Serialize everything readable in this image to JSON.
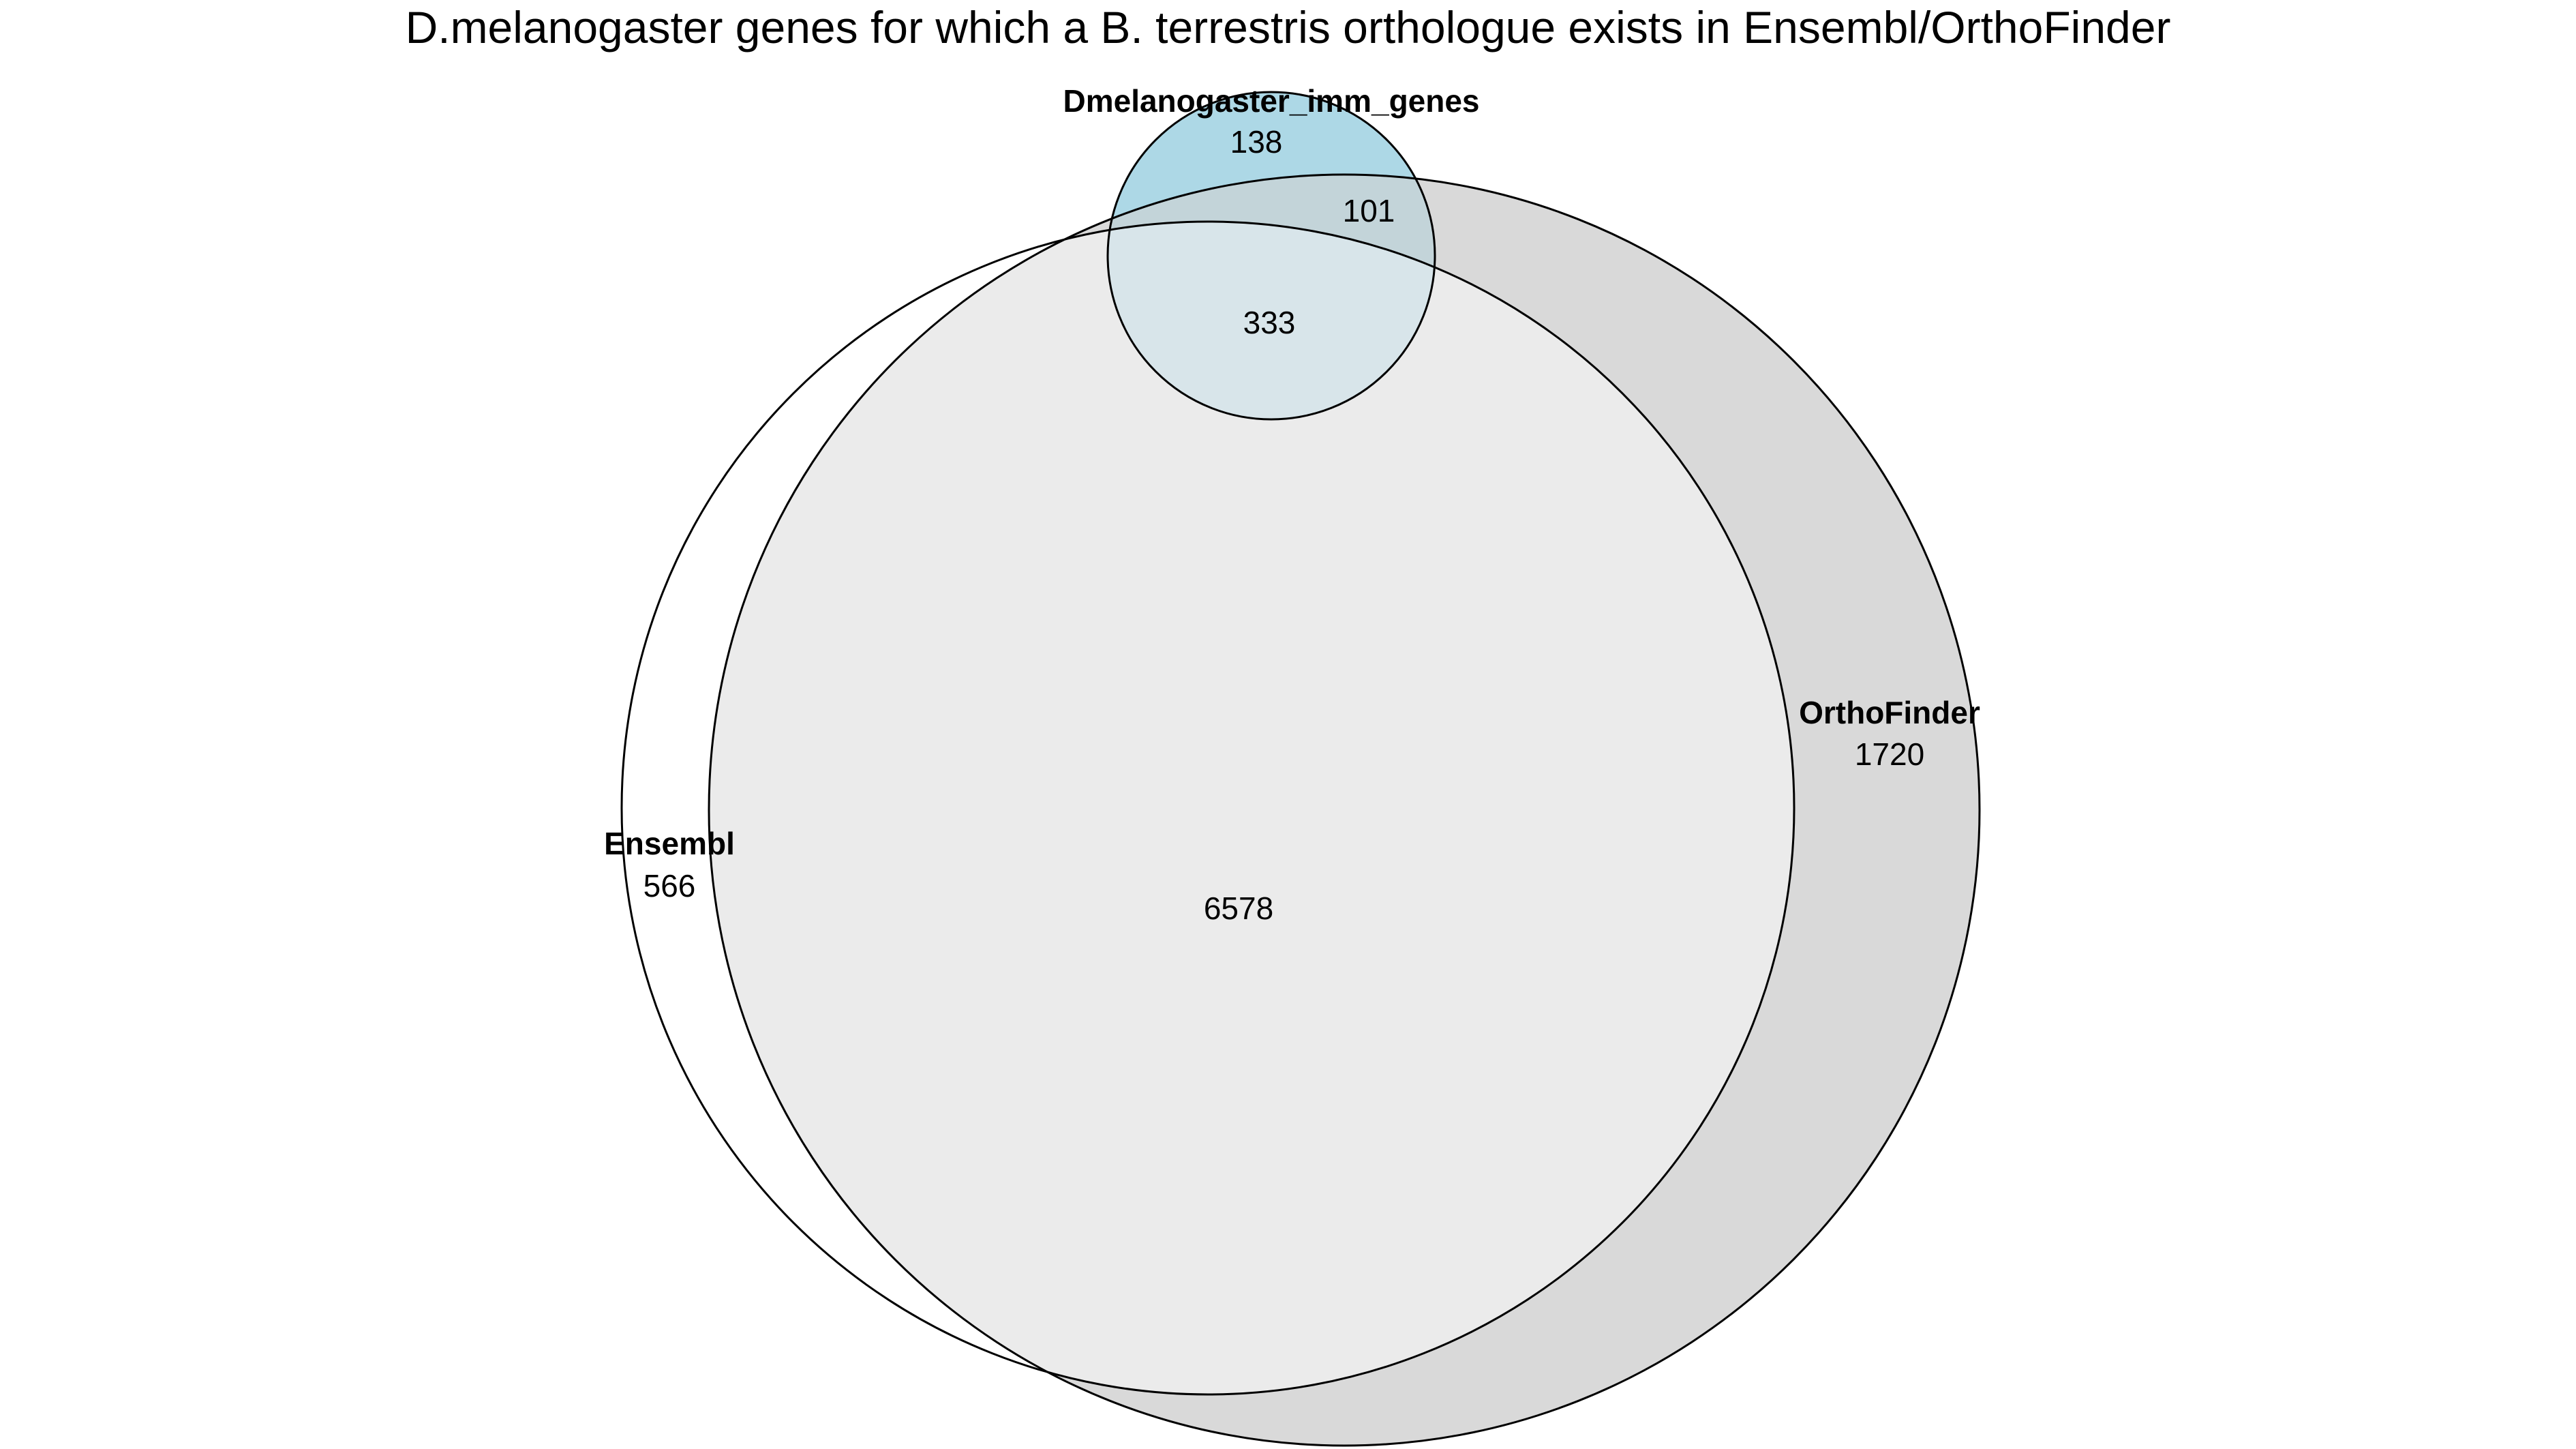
{
  "title": "D.melanogaster genes for which a B. terrestris orthologue exists in Ensembl/OrthoFinder",
  "colors": {
    "background": "#ffffff",
    "outline": "#000000",
    "imm_genes_fill": "#add8e6",
    "orthofinder_fill": "#d9d9d9",
    "ensembl_fill": "#ffffff",
    "ensembl_orthofinder_overlap": "#ebebeb",
    "imm_orthofinder_overlap": "#c3d4d9",
    "all_three_overlap": "#d8e5ea"
  },
  "sets": {
    "imm": {
      "name": "Dmelanogaster_imm_genes"
    },
    "ensembl": {
      "name": "Ensembl"
    },
    "orthofinder": {
      "name": "OrthoFinder"
    }
  },
  "regions": {
    "imm_only": "138",
    "imm_orthofinder": "101",
    "imm_ensembl_orthofinder": "333",
    "ensembl_orthofinder": "6578",
    "ensembl_only": "566",
    "orthofinder_only": "1720"
  }
}
